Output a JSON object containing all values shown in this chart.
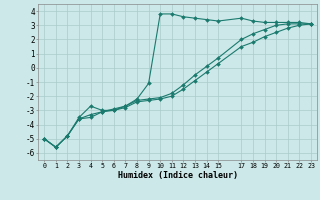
{
  "xlabel": "Humidex (Indice chaleur)",
  "bg_color": "#cce8e8",
  "line_color": "#1a7a6e",
  "grid_color": "#aacccc",
  "ylim": [
    -6.5,
    4.5
  ],
  "xlim": [
    -0.5,
    23.5
  ],
  "line1_x": [
    0,
    1,
    2,
    3,
    4,
    5,
    6,
    7,
    8,
    9,
    10,
    11,
    12,
    13,
    14,
    15,
    17,
    18,
    19,
    20,
    21,
    22,
    23
  ],
  "line1_y": [
    -5.0,
    -5.6,
    -4.8,
    -3.5,
    -2.7,
    -3.0,
    -3.0,
    -2.7,
    -2.2,
    -1.1,
    3.8,
    3.8,
    3.6,
    3.5,
    3.4,
    3.3,
    3.5,
    3.3,
    3.2,
    3.2,
    3.2,
    3.2,
    3.1
  ],
  "line2_x": [
    0,
    1,
    2,
    3,
    4,
    5,
    6,
    7,
    8,
    9,
    10,
    11,
    12,
    13,
    14,
    15,
    17,
    18,
    19,
    20,
    21,
    22,
    23
  ],
  "line2_y": [
    -5.0,
    -5.6,
    -4.8,
    -3.6,
    -3.5,
    -3.1,
    -3.0,
    -2.8,
    -2.4,
    -2.3,
    -2.2,
    -2.0,
    -1.5,
    -0.9,
    -0.3,
    0.3,
    1.5,
    1.8,
    2.2,
    2.5,
    2.8,
    3.0,
    3.1
  ],
  "line3_x": [
    0,
    1,
    2,
    3,
    4,
    5,
    6,
    7,
    8,
    9,
    10,
    11,
    12,
    13,
    14,
    15,
    17,
    18,
    19,
    20,
    21,
    22,
    23
  ],
  "line3_y": [
    -5.0,
    -5.6,
    -4.8,
    -3.6,
    -3.3,
    -3.1,
    -2.9,
    -2.7,
    -2.3,
    -2.2,
    -2.1,
    -1.8,
    -1.2,
    -0.5,
    0.1,
    0.7,
    2.0,
    2.4,
    2.7,
    3.0,
    3.1,
    3.1,
    3.1
  ],
  "yticks": [
    -6,
    -5,
    -4,
    -3,
    -2,
    -1,
    0,
    1,
    2,
    3,
    4
  ],
  "xticks": [
    0,
    1,
    2,
    3,
    4,
    5,
    6,
    7,
    8,
    9,
    10,
    11,
    12,
    13,
    14,
    15,
    17,
    18,
    19,
    20,
    21,
    22,
    23
  ],
  "xtick_labels": [
    "0",
    "1",
    "2",
    "3",
    "4",
    "5",
    "6",
    "7",
    "8",
    "9",
    "10",
    "11",
    "12",
    "13",
    "14",
    "15",
    "17",
    "18",
    "19",
    "20",
    "21",
    "22",
    "23"
  ],
  "marker": "D",
  "marker_size": 2.0,
  "line_width": 0.8
}
